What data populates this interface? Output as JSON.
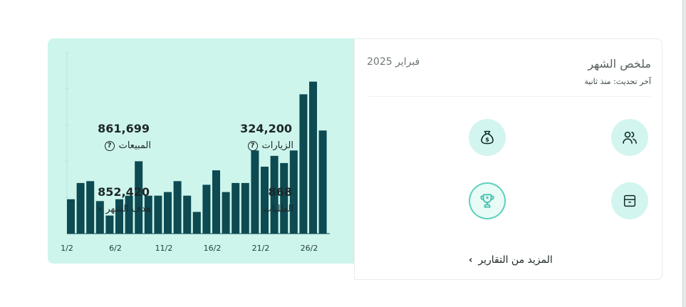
{
  "summary": {
    "title": "ملخص الشهر",
    "updated": "آخر تحديث: منذ ثانية",
    "month": "فبراير 2025",
    "more_reports": "المزيد من التقارير"
  },
  "metrics": {
    "visits": {
      "label": "الزيارات",
      "value": "324,200",
      "icon": "users-icon"
    },
    "sales": {
      "label": "المبيعات",
      "value": "861,699",
      "icon": "money-bag-icon"
    },
    "orders": {
      "label": "الطلبات",
      "value": "868",
      "icon": "box-icon"
    },
    "monthly_goal": {
      "label": "هدف الشهر",
      "value": "852,420",
      "icon": "trophy-icon"
    }
  },
  "colors": {
    "bar": "#0d4a52",
    "panel": "#cdf5ec",
    "icon_bg": "#d3f5ef",
    "accent": "#5ed0be"
  },
  "chart_data": {
    "type": "bar",
    "x_tick_labels": [
      "1/2",
      "6/2",
      "11/2",
      "16/2",
      "21/2",
      "26/2"
    ],
    "values": [
      19,
      28,
      29,
      18,
      10,
      19,
      21,
      40,
      21,
      21,
      23,
      29,
      21,
      12,
      27,
      35,
      23,
      28,
      28,
      46,
      37,
      43,
      39,
      46,
      77,
      84,
      57
    ],
    "ylim": [
      0,
      100
    ],
    "grid": true,
    "legend": "none"
  }
}
